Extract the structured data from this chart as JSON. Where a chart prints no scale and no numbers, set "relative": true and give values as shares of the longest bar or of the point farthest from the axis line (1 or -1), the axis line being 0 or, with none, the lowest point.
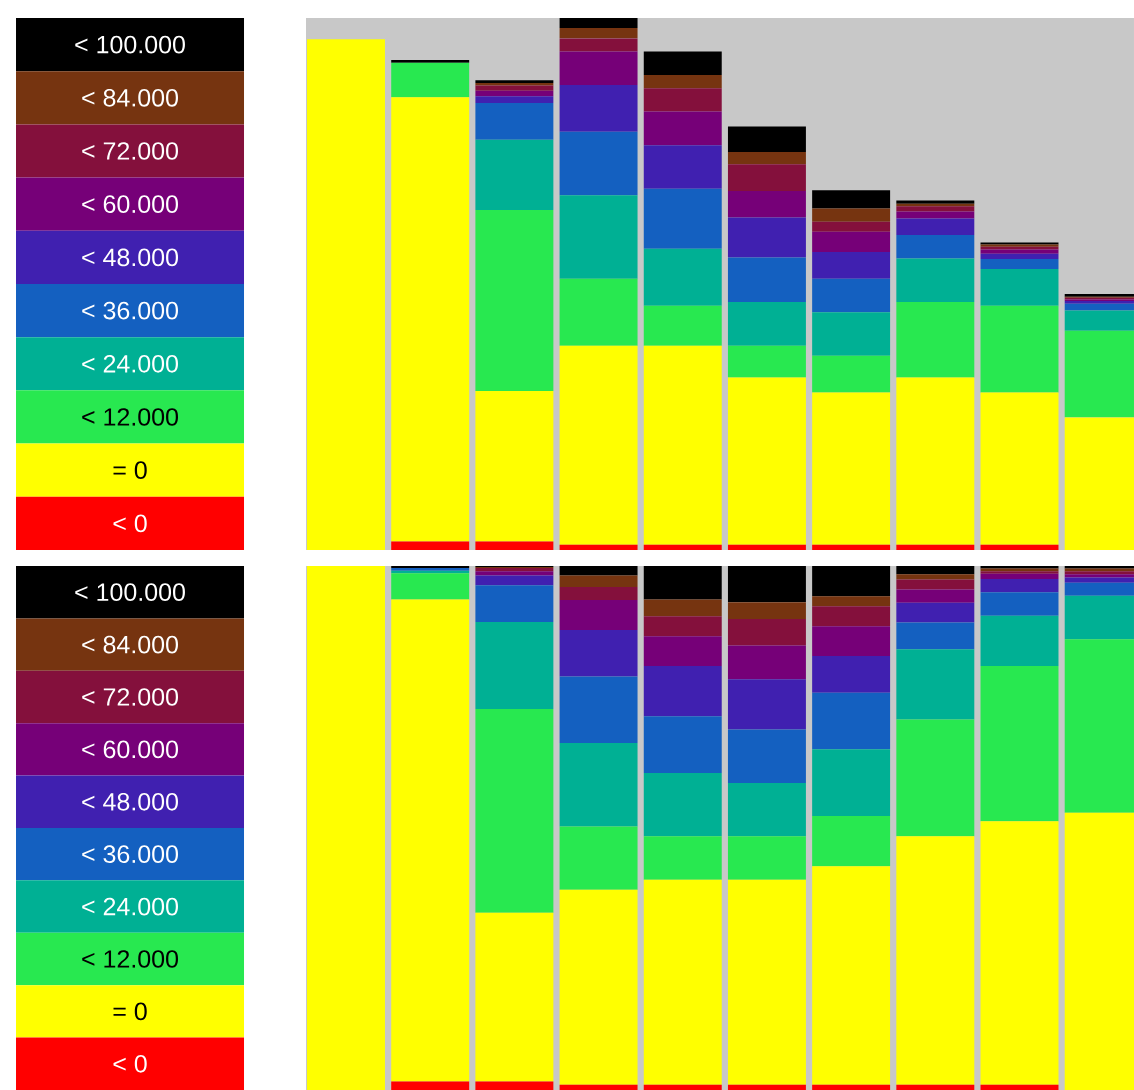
{
  "chart_data": [
    {
      "type": "bar",
      "stacked": true,
      "relative": true,
      "legend": "left",
      "categories": [
        null,
        null,
        null,
        null,
        null,
        null,
        null,
        null,
        null,
        null
      ],
      "series": [
        {
          "name": "< 0",
          "color": "#ff0000",
          "values": [
            0,
            0.016,
            0.016,
            0.01,
            0.01,
            0.01,
            0.01,
            0.01,
            0.01,
            0
          ]
        },
        {
          "name": "= 0",
          "color": "#ffff00",
          "values": [
            0.96,
            0.835,
            0.283,
            0.374,
            0.374,
            0.314,
            0.286,
            0.314,
            0.286,
            0.249
          ]
        },
        {
          "name": "< 12.000",
          "color": "#28e850",
          "values": [
            0,
            0.065,
            0.34,
            0.126,
            0.075,
            0.06,
            0.069,
            0.142,
            0.163,
            0.163
          ]
        },
        {
          "name": "< 24.000",
          "color": "#00b094",
          "values": [
            0,
            0,
            0.132,
            0.157,
            0.107,
            0.082,
            0.082,
            0.082,
            0.069,
            0.038
          ]
        },
        {
          "name": "< 36.000",
          "color": "#1460c0",
          "values": [
            0,
            0,
            0.069,
            0.119,
            0.113,
            0.084,
            0.063,
            0.044,
            0.019,
            0.013
          ]
        },
        {
          "name": "< 48.000",
          "color": "#4020b0",
          "values": [
            0,
            0,
            0.013,
            0.088,
            0.082,
            0.075,
            0.05,
            0.031,
            0.01,
            0.005
          ]
        },
        {
          "name": "< 60.000",
          "color": "#760078",
          "values": [
            0,
            0,
            0.01,
            0.063,
            0.063,
            0.05,
            0.038,
            0.013,
            0.008,
            0.003
          ]
        },
        {
          "name": "< 72.000",
          "color": "#84103c",
          "values": [
            0,
            0,
            0.01,
            0.025,
            0.044,
            0.05,
            0.019,
            0.01,
            0.005,
            0.003
          ]
        },
        {
          "name": "< 84.000",
          "color": "#763410",
          "values": [
            0,
            0,
            0.005,
            0.019,
            0.025,
            0.023,
            0.025,
            0.005,
            0.004,
            0.002
          ]
        },
        {
          "name": "< 100.000",
          "color": "#000000",
          "values": [
            0,
            0.005,
            0.005,
            0.019,
            0.044,
            0.048,
            0.034,
            0.006,
            0.004,
            0.005
          ]
        }
      ]
    },
    {
      "type": "bar",
      "stacked": true,
      "relative": true,
      "legend": "left",
      "categories": [
        null,
        null,
        null,
        null,
        null,
        null,
        null,
        null,
        null,
        null
      ],
      "series": [
        {
          "name": "< 0",
          "color": "#ff0000",
          "values": [
            0,
            0.016,
            0.016,
            0.01,
            0.01,
            0.01,
            0.01,
            0.01,
            0.01,
            0
          ]
        },
        {
          "name": "= 0",
          "color": "#ffff00",
          "values": [
            1,
            0.92,
            0.322,
            0.372,
            0.391,
            0.391,
            0.417,
            0.474,
            0.503,
            0.529
          ]
        },
        {
          "name": "< 12.000",
          "color": "#28e850",
          "values": [
            0,
            0.05,
            0.389,
            0.121,
            0.083,
            0.083,
            0.096,
            0.223,
            0.296,
            0.331
          ]
        },
        {
          "name": "< 24.000",
          "color": "#00b094",
          "values": [
            0,
            0.005,
            0.166,
            0.159,
            0.121,
            0.102,
            0.127,
            0.134,
            0.096,
            0.083
          ]
        },
        {
          "name": "< 36.000",
          "color": "#1460c0",
          "values": [
            0,
            0.005,
            0.07,
            0.127,
            0.108,
            0.102,
            0.108,
            0.051,
            0.045,
            0.025
          ]
        },
        {
          "name": "< 48.000",
          "color": "#4020b0",
          "values": [
            0,
            0,
            0.019,
            0.089,
            0.096,
            0.096,
            0.07,
            0.038,
            0.025,
            0.01
          ]
        },
        {
          "name": "< 60.000",
          "color": "#760078",
          "values": [
            0,
            0,
            0.008,
            0.057,
            0.057,
            0.064,
            0.057,
            0.025,
            0.01,
            0.006
          ]
        },
        {
          "name": "< 72.000",
          "color": "#84103c",
          "values": [
            0,
            0,
            0.006,
            0.025,
            0.038,
            0.051,
            0.038,
            0.019,
            0.005,
            0.006
          ]
        },
        {
          "name": "< 84.000",
          "color": "#763410",
          "values": [
            0,
            0,
            0.002,
            0.022,
            0.032,
            0.032,
            0.019,
            0.01,
            0.005,
            0.005
          ]
        },
        {
          "name": "< 100.000",
          "color": "#000000",
          "values": [
            0,
            0.004,
            0.002,
            0.018,
            0.064,
            0.069,
            0.058,
            0.016,
            0.005,
            0.005
          ]
        }
      ]
    }
  ]
}
